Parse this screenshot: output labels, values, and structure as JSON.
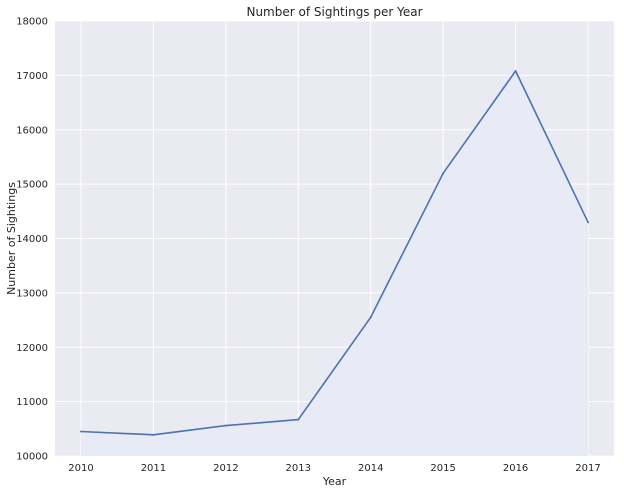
{
  "chart_data": {
    "type": "line",
    "title": "Number of Sightings per Year",
    "xlabel": "Year",
    "ylabel": "Number of Sightings",
    "categories": [
      "2010",
      "2011",
      "2012",
      "2013",
      "2014",
      "2015",
      "2016",
      "2017"
    ],
    "x_ticks": [
      "2010",
      "2011",
      "2012",
      "2013",
      "2014",
      "2015",
      "2016",
      "2017"
    ],
    "y_ticks": [
      "10000",
      "11000",
      "12000",
      "13000",
      "14000",
      "15000",
      "16000",
      "17000",
      "18000"
    ],
    "series": [
      {
        "values": [
          10450,
          10390,
          10560,
          10670,
          12550,
          15200,
          17080,
          14300
        ]
      }
    ],
    "ylim": [
      10000,
      18000
    ],
    "grid": true,
    "legend": "none",
    "colors": {
      "background": "#eaeaf2",
      "grid": "#ffffff",
      "line": "#4c72b0",
      "text": "#262626"
    }
  }
}
